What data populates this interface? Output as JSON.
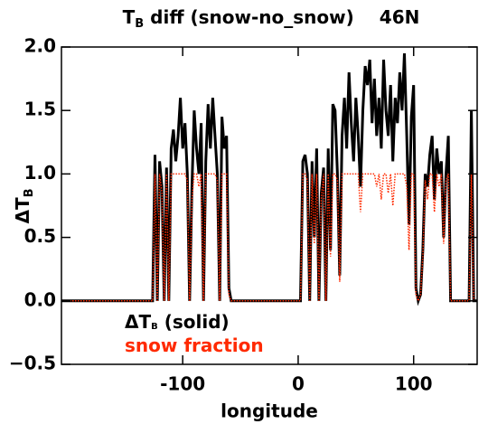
{
  "chart_data": {
    "type": "line",
    "title": {
      "text": "T",
      "subscript": "B",
      "rest": " diff (snow-no_snow)",
      "latitude": "46N"
    },
    "xlabel": "longitude",
    "ylabel": {
      "text": "ΔT",
      "subscript": "B"
    },
    "xlim": [
      -205,
      155
    ],
    "xticks": [
      -100,
      0,
      100
    ],
    "ylim": [
      -0.5,
      2.0
    ],
    "yticks": [
      {
        "value": -0.5,
        "label": "−0.5"
      },
      {
        "value": 0,
        "label": "0.0"
      },
      {
        "value": 0.5,
        "label": "0.5"
      },
      {
        "value": 1,
        "label": "1.0"
      },
      {
        "value": 1.5,
        "label": "1.5"
      },
      {
        "value": 2,
        "label": "2.0"
      }
    ],
    "x": [
      -205,
      -126,
      -124,
      -122,
      -120,
      -118,
      -116,
      -114,
      -112,
      -110,
      -108,
      -106,
      -104,
      -102,
      -100,
      -98,
      -96,
      -94,
      -92,
      -90,
      -88,
      -86,
      -84,
      -82,
      -80,
      -78,
      -76,
      -74,
      -72,
      -70,
      -68,
      -66,
      -64,
      -62,
      -60,
      -58,
      -56,
      2,
      4,
      6,
      8,
      10,
      12,
      14,
      16,
      18,
      20,
      22,
      24,
      26,
      28,
      30,
      32,
      34,
      36,
      38,
      40,
      42,
      44,
      46,
      48,
      50,
      52,
      54,
      56,
      58,
      60,
      62,
      64,
      66,
      68,
      70,
      72,
      74,
      76,
      78,
      80,
      82,
      84,
      86,
      88,
      90,
      92,
      94,
      96,
      98,
      100,
      102,
      104,
      106,
      108,
      110,
      112,
      114,
      116,
      118,
      120,
      122,
      124,
      126,
      128,
      130,
      132,
      134,
      148,
      150,
      152,
      155
    ],
    "series": [
      {
        "name": "ΔT",
        "name_subscript": "B",
        "name_suffix": " (solid)",
        "color": "#000000",
        "style": "solid",
        "values": [
          0,
          0,
          1.15,
          0,
          1.1,
          0.9,
          0,
          1.05,
          0,
          1.2,
          1.35,
          1.1,
          1.3,
          1.6,
          1.2,
          1.4,
          1.0,
          0,
          0.9,
          1.5,
          1.2,
          1.0,
          1.4,
          0,
          1.1,
          1.55,
          1.2,
          1.6,
          1.3,
          1.0,
          0,
          1.45,
          1.2,
          1.3,
          0.1,
          0,
          0,
          0,
          1.1,
          1.15,
          1.0,
          0,
          1.1,
          0.5,
          1.2,
          0,
          0.85,
          1.05,
          0,
          1.2,
          0.4,
          1.55,
          1.5,
          1.0,
          0.2,
          1.3,
          1.6,
          1.2,
          1.8,
          1.4,
          1.1,
          1.6,
          1.3,
          0.9,
          1.5,
          1.85,
          1.7,
          1.9,
          1.4,
          1.75,
          1.3,
          1.6,
          1.2,
          1.9,
          1.5,
          1.3,
          1.7,
          1.1,
          1.6,
          1.4,
          1.8,
          1.5,
          1.95,
          1.3,
          0.6,
          1.45,
          1.7,
          0.1,
          0,
          0.05,
          0.4,
          1.0,
          0.9,
          1.15,
          1.3,
          0.8,
          1.2,
          1.0,
          1.1,
          0.5,
          1.0,
          1.3,
          0,
          0,
          0,
          1.5,
          0,
          0
        ]
      },
      {
        "name": "snow fraction",
        "color": "#ff2a00",
        "style": "dotted",
        "values": [
          0,
          0,
          1,
          0,
          1,
          0.85,
          0,
          1,
          0,
          1,
          1,
          1,
          1,
          1,
          1,
          1,
          0.95,
          0,
          0.8,
          1,
          1,
          0.9,
          1,
          0,
          1,
          1,
          1,
          1,
          1,
          0.95,
          0,
          1,
          1,
          1,
          0.05,
          0,
          0,
          0,
          1,
          1,
          0.95,
          0,
          1,
          0.45,
          1,
          0,
          0.8,
          1,
          0,
          1,
          0.35,
          1,
          1,
          0.95,
          0.15,
          1,
          1,
          1,
          1,
          1,
          1,
          1,
          1,
          0.7,
          1,
          1,
          1,
          1,
          1,
          1,
          0.9,
          1,
          0.8,
          1,
          1,
          0.85,
          1,
          0.75,
          1,
          1,
          1,
          1,
          1,
          0.9,
          0.4,
          1,
          1,
          0.05,
          0,
          0.05,
          0.35,
          0.95,
          0.8,
          1,
          1,
          0.7,
          1,
          0.9,
          1,
          0.45,
          0.95,
          1,
          0,
          0,
          0,
          1,
          0,
          0
        ]
      }
    ]
  }
}
